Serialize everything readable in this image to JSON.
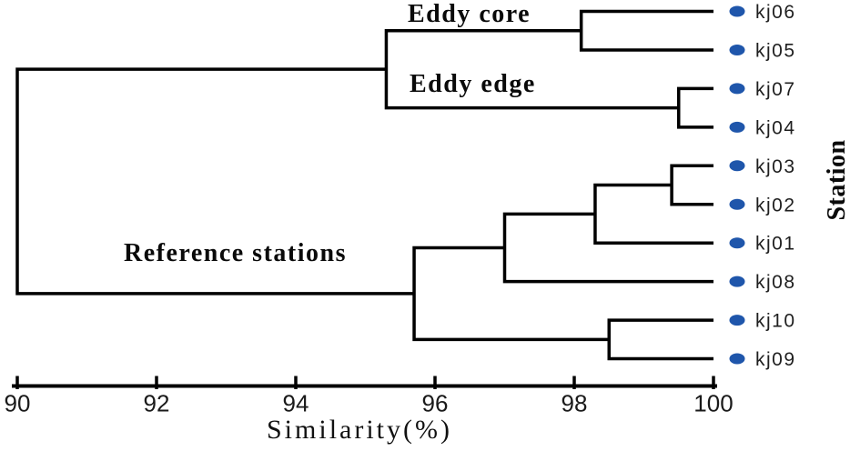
{
  "chart_data": {
    "type": "dendrogram",
    "orientation": "horizontal",
    "xlabel": "Similarity(%)",
    "ylabel": "Station",
    "grid": false,
    "axis": {
      "min": 90,
      "max": 100,
      "ticks": [
        "90",
        "92",
        "94",
        "96",
        "98",
        "100"
      ],
      "tick_values": [
        90,
        92,
        94,
        96,
        98,
        100
      ]
    },
    "leaves": [
      "kj06",
      "kj05",
      "kj07",
      "kj04",
      "kj03",
      "kj02",
      "kj01",
      "kj08",
      "kj10",
      "kj09"
    ],
    "leaf_similarity": 100,
    "merges": [
      {
        "id": "eddy-core",
        "children": [
          "kj06",
          "kj05"
        ],
        "similarity": 98.1,
        "label": "Eddy core"
      },
      {
        "id": "eddy-edge",
        "children": [
          "kj07",
          "kj04"
        ],
        "similarity": 99.5,
        "label": "Eddy edge"
      },
      {
        "id": "eddy",
        "children": [
          "eddy-core",
          "eddy-edge"
        ],
        "similarity": 95.3
      },
      {
        "id": "kj03-kj02",
        "children": [
          "kj03",
          "kj02"
        ],
        "similarity": 99.4
      },
      {
        "id": "ref-a",
        "children": [
          "kj03-kj02",
          "kj01"
        ],
        "similarity": 98.3
      },
      {
        "id": "ref-b",
        "children": [
          "ref-a",
          "kj08"
        ],
        "similarity": 97.0
      },
      {
        "id": "kj10-kj09",
        "children": [
          "kj10",
          "kj09"
        ],
        "similarity": 98.5
      },
      {
        "id": "reference",
        "children": [
          "ref-b",
          "kj10-kj09"
        ],
        "similarity": 95.7,
        "label": "Reference stations"
      },
      {
        "id": "root",
        "children": [
          "eddy",
          "reference"
        ],
        "similarity": 90.0
      }
    ],
    "colors": {
      "line": "#000000",
      "dot": "#1f56ab",
      "station_label": "#1f1f1f",
      "tick_label": "#1a1a1a"
    }
  }
}
